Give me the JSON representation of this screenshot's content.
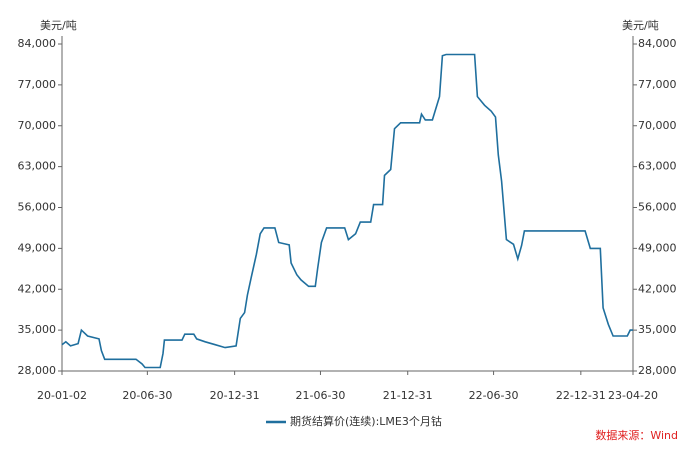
{
  "chart_data": {
    "type": "line",
    "y_unit": "美元/吨",
    "y2_unit": "美元/吨",
    "source": "数据来源：Wind",
    "x": [
      "20-01-02",
      "20-01-10",
      "20-01-20",
      "20-02-05",
      "20-02-12",
      "20-02-25",
      "20-03-20",
      "20-03-25",
      "20-04-01",
      "20-06-06",
      "20-06-19",
      "20-06-25",
      "20-07-27",
      "20-08-02",
      "20-08-05",
      "20-09-11",
      "20-09-17",
      "20-10-06",
      "20-10-12",
      "20-10-30",
      "20-11-20",
      "20-12-11",
      "21-01-03",
      "21-01-12",
      "21-01-21",
      "21-01-27",
      "21-02-04",
      "21-02-15",
      "21-02-23",
      "21-03-03",
      "21-03-26",
      "21-04-03",
      "21-04-25",
      "21-04-29",
      "21-05-11",
      "21-05-20",
      "21-06-05",
      "21-06-19",
      "21-06-24",
      "21-07-02",
      "21-07-13",
      "21-08-20",
      "21-08-28",
      "21-09-12",
      "21-09-22",
      "21-10-14",
      "21-10-20",
      "21-11-08",
      "21-11-12",
      "21-11-25",
      "21-12-03",
      "21-12-16",
      "22-01-25",
      "22-01-29",
      "22-02-06",
      "22-02-21",
      "22-03-08",
      "22-03-14",
      "22-03-22",
      "22-05-21",
      "22-05-27",
      "22-06-11",
      "22-06-25",
      "22-07-04",
      "22-07-10",
      "22-07-17",
      "22-07-27",
      "22-08-11",
      "22-08-20",
      "22-08-28",
      "22-09-03",
      "23-01-09",
      "23-01-20",
      "23-02-10",
      "23-02-16",
      "23-02-27",
      "23-03-09",
      "23-04-08",
      "23-04-14",
      "23-04-20"
    ],
    "series": [
      {
        "name": "期货结算价(连续):LME3个月钴",
        "color": "#1f6f9e",
        "values": [
          32500,
          33000,
          32300,
          32700,
          35000,
          34000,
          33500,
          31500,
          30000,
          30000,
          29200,
          28600,
          28600,
          31000,
          33300,
          33300,
          34300,
          34300,
          33500,
          33000,
          32500,
          32000,
          32300,
          37000,
          38000,
          41000,
          44000,
          48000,
          51500,
          52500,
          52500,
          50000,
          49600,
          46500,
          44500,
          43600,
          42500,
          42500,
          45500,
          50000,
          52500,
          52500,
          50500,
          51500,
          53500,
          53500,
          56500,
          56500,
          61500,
          62500,
          69500,
          70500,
          70500,
          72000,
          71000,
          71000,
          75000,
          82000,
          82200,
          82200,
          75000,
          73500,
          72500,
          71500,
          65000,
          60500,
          50500,
          49700,
          47200,
          49500,
          52000,
          52000,
          49000,
          49000,
          38800,
          36000,
          34000,
          34000,
          35000,
          35000
        ]
      }
    ],
    "xlim": [
      "20-01-02",
      "23-04-20"
    ],
    "xticks": [
      "20-01-02",
      "20-06-30",
      "20-12-31",
      "21-06-30",
      "21-12-31",
      "22-06-30",
      "22-12-31",
      "23-04-20"
    ],
    "ylim": [
      28000,
      84000
    ],
    "yticks": [
      {
        "value": 28000,
        "label": "28,000"
      },
      {
        "value": 35000,
        "label": "35,000"
      },
      {
        "value": 42000,
        "label": "42,000"
      },
      {
        "value": 49000,
        "label": "49,000"
      },
      {
        "value": 56000,
        "label": "56,000"
      },
      {
        "value": 63000,
        "label": "63,000"
      },
      {
        "value": 70000,
        "label": "70,000"
      },
      {
        "value": 77000,
        "label": "77,000"
      },
      {
        "value": 84000,
        "label": "84,000"
      }
    ],
    "y2lim": [
      28000,
      84000
    ],
    "y2ticks": [
      {
        "value": 28000,
        "label": "28,000"
      },
      {
        "value": 35000,
        "label": "35,000"
      },
      {
        "value": 42000,
        "label": "42,000"
      },
      {
        "value": 49000,
        "label": "49,000"
      },
      {
        "value": 56000,
        "label": "56,000"
      },
      {
        "value": 63000,
        "label": "63,000"
      },
      {
        "value": 70000,
        "label": "70,000"
      },
      {
        "value": 77000,
        "label": "77,000"
      },
      {
        "value": 84000,
        "label": "84,000"
      }
    ],
    "grid": false
  }
}
